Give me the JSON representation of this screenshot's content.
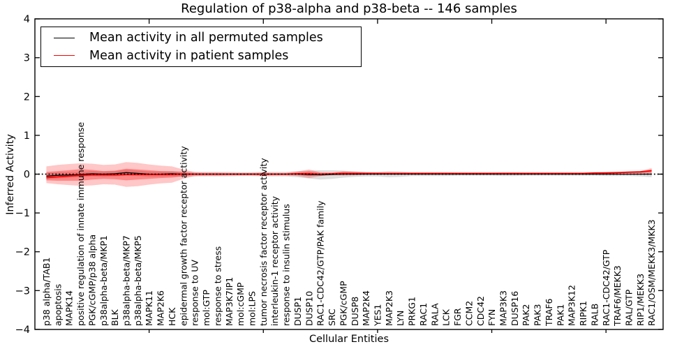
{
  "title": "Regulation of p38-alpha and p38-beta -- 146 samples",
  "axes": {
    "ylabel": "Inferred Activity",
    "xlabel": "Cellular Entities",
    "ytick_values": [
      4,
      3,
      2,
      1,
      0,
      -1,
      -2,
      -3,
      -4
    ],
    "ytick_labels": [
      "4",
      "3",
      "2",
      "1",
      "0",
      "−1",
      "−2",
      "−3",
      "−4"
    ],
    "xtick_major_positions": [
      10,
      20,
      30,
      40,
      50
    ]
  },
  "legend": {
    "entries": [
      {
        "label": "Mean activity in all permuted samples",
        "color": "#000000"
      },
      {
        "label": "Mean activity in patient samples",
        "color": "#ff0000"
      }
    ]
  },
  "chart_data": {
    "type": "line",
    "title": "Regulation of p38-alpha and p38-beta -- 146 samples",
    "xlabel": "Cellular Entities",
    "ylabel": "Inferred Activity",
    "ylim": [
      -4,
      4
    ],
    "zero_line": {
      "y": 0,
      "style": "dotted",
      "color": "#000000"
    },
    "categories": [
      "p38 alpha/TAB1",
      "apoptosis",
      "MAPK14",
      "positive regulation of innate immune response",
      "PGK/cGMP/p38 alpha",
      "p38alpha-beta/MKP1",
      "BLK",
      "p38alpha-beta/MKP7",
      "p38alpha-beta/MKP5",
      "MAPK11",
      "MAP2K6",
      "HCK",
      "epidermal growth factor receptor activity",
      "response to UV",
      "mol:GTP",
      "response to stress",
      "MAP3K7IP1",
      "mol:cGMP",
      "mol:LPS",
      "tumor necrosis factor receptor activity",
      "interleukin-1 receptor activity",
      "response to insulin stimulus",
      "DUSP1",
      "DUSP10",
      "RAC1-CDC42/GTP/PAK family",
      "SRC",
      "PGK/cGMP",
      "DUSP8",
      "MAP2K4",
      "YES1",
      "MAP2K3",
      "LYN",
      "PRKG1",
      "RAC1",
      "RALA",
      "LCK",
      "FGR",
      "CCM2",
      "CDC42",
      "FYN",
      "MAP3K3",
      "DUSP16",
      "PAK2",
      "PAK3",
      "TRAF6",
      "PAK1",
      "MAP3K12",
      "RIPK1",
      "RALB",
      "RAC1-CDC42/GTP",
      "TRAF6/MEKK3",
      "RAL/GTP",
      "RIP1/MEKK3",
      "RAC1/OSM/MEKK3/MKK3"
    ],
    "series": [
      {
        "name": "Mean activity in all permuted samples",
        "color": "#000000",
        "width": 1.3,
        "values": [
          -0.05,
          -0.03,
          -0.02,
          -0.01,
          0.01,
          0,
          0.01,
          0.04,
          0.02,
          0,
          0,
          0.01,
          0,
          0,
          0,
          0,
          0,
          0,
          0,
          0,
          0,
          0,
          0,
          -0.01,
          -0.02,
          -0.01,
          0,
          0,
          0,
          0,
          0,
          0,
          0,
          0,
          0,
          0,
          0,
          0,
          0,
          0,
          0,
          0,
          0,
          0,
          0,
          0,
          0,
          0,
          0,
          0,
          0,
          0,
          0,
          0
        ]
      },
      {
        "name": "Mean activity in patient samples",
        "color": "#ff0000",
        "width": 1.8,
        "values": [
          -0.09,
          -0.07,
          -0.05,
          -0.03,
          -0.02,
          -0.02,
          -0.02,
          -0.01,
          -0.01,
          -0.01,
          -0.01,
          -0.01,
          0,
          0,
          0,
          0,
          0,
          0,
          0,
          0,
          0,
          0,
          0.01,
          0.01,
          0,
          0.01,
          0.02,
          0.02,
          0.02,
          0.02,
          0.02,
          0.02,
          0.02,
          0.02,
          0.02,
          0.02,
          0.02,
          0.02,
          0.02,
          0.02,
          0.02,
          0.02,
          0.02,
          0.02,
          0.02,
          0.02,
          0.02,
          0.02,
          0.03,
          0.03,
          0.04,
          0.05,
          0.06,
          0.09
        ]
      }
    ],
    "bands": [
      {
        "name": "permuted-range",
        "color": "#000000",
        "opacity": 0.13,
        "upper": [
          0.03,
          0.05,
          0.05,
          0.06,
          0.08,
          0.07,
          0.08,
          0.12,
          0.09,
          0.07,
          0.07,
          0.08,
          0.07,
          0.06,
          0.06,
          0.06,
          0.06,
          0.05,
          0.05,
          0.06,
          0.06,
          0.06,
          0.08,
          0.09,
          0.1,
          0.1,
          0.09,
          0.07,
          0.06,
          0.06,
          0.08,
          0.07,
          0.05,
          0.05,
          0.05,
          0.05,
          0.04,
          0.04,
          0.04,
          0.04,
          0.05,
          0.05,
          0.04,
          0.04,
          0.04,
          0.04,
          0.04,
          0.04,
          0.04,
          0.05,
          0.05,
          0.05,
          0.06,
          0.08
        ],
        "lower": [
          -0.13,
          -0.11,
          -0.09,
          -0.08,
          -0.06,
          -0.07,
          -0.06,
          -0.04,
          -0.05,
          -0.07,
          -0.07,
          -0.06,
          -0.07,
          -0.06,
          -0.06,
          -0.06,
          -0.06,
          -0.05,
          -0.05,
          -0.06,
          -0.06,
          -0.06,
          -0.08,
          -0.11,
          -0.14,
          -0.12,
          -0.09,
          -0.07,
          -0.06,
          -0.06,
          -0.08,
          -0.07,
          -0.05,
          -0.05,
          -0.05,
          -0.05,
          -0.04,
          -0.04,
          -0.04,
          -0.04,
          -0.05,
          -0.05,
          -0.04,
          -0.04,
          -0.04,
          -0.04,
          -0.04,
          -0.04,
          -0.04,
          -0.05,
          -0.05,
          -0.05,
          -0.06,
          -0.08
        ]
      },
      {
        "name": "patient-range-outer",
        "color": "#ff0000",
        "opacity": 0.22,
        "upper": [
          0.2,
          0.24,
          0.26,
          0.28,
          0.27,
          0.24,
          0.25,
          0.31,
          0.29,
          0.25,
          0.22,
          0.2,
          0.12,
          0.05,
          0.04,
          0.04,
          0.03,
          0.03,
          0.03,
          0.04,
          0.03,
          0.03,
          0.07,
          0.12,
          0.05,
          0.04,
          0.08,
          0.07,
          0.05,
          0.04,
          0.04,
          0.04,
          0.04,
          0.04,
          0.04,
          0.04,
          0.04,
          0.04,
          0.04,
          0.04,
          0.04,
          0.04,
          0.04,
          0.04,
          0.04,
          0.04,
          0.04,
          0.04,
          0.05,
          0.06,
          0.06,
          0.07,
          0.08,
          0.16
        ],
        "lower": [
          -0.23,
          -0.26,
          -0.28,
          -0.3,
          -0.29,
          -0.26,
          -0.27,
          -0.33,
          -0.31,
          -0.27,
          -0.24,
          -0.22,
          -0.12,
          -0.05,
          -0.04,
          -0.04,
          -0.03,
          -0.03,
          -0.03,
          -0.04,
          -0.03,
          -0.03,
          -0.05,
          -0.1,
          -0.05,
          -0.02,
          -0.04,
          -0.03,
          -0.01,
          0,
          0,
          0,
          0,
          0,
          0,
          0,
          0,
          0,
          0,
          0,
          0,
          0,
          0,
          0,
          0,
          0,
          0,
          0,
          0.01,
          0,
          0.01,
          0.02,
          0.02,
          0.01
        ]
      },
      {
        "name": "patient-range-inner",
        "color": "#ff0000",
        "opacity": 0.32,
        "upper": [
          0.06,
          0.08,
          0.1,
          0.13,
          0.11,
          0.08,
          0.09,
          0.14,
          0.12,
          0.1,
          0.08,
          0.07,
          0.05,
          0.02,
          0.02,
          0.02,
          0.02,
          0.02,
          0.02,
          0.02,
          0.02,
          0.02,
          0.04,
          0.07,
          0.03,
          0.03,
          0.05,
          0.04,
          0.03,
          0.03,
          0.03,
          0.03,
          0.03,
          0.03,
          0.03,
          0.03,
          0.03,
          0.03,
          0.03,
          0.03,
          0.03,
          0.03,
          0.03,
          0.03,
          0.03,
          0.03,
          0.03,
          0.03,
          0.04,
          0.04,
          0.05,
          0.05,
          0.06,
          0.12
        ],
        "lower": [
          -0.16,
          -0.17,
          -0.17,
          -0.17,
          -0.14,
          -0.12,
          -0.13,
          -0.16,
          -0.14,
          -0.12,
          -0.1,
          -0.09,
          -0.05,
          -0.02,
          -0.02,
          -0.02,
          -0.02,
          -0.02,
          -0.02,
          -0.02,
          -0.02,
          -0.02,
          -0.02,
          -0.05,
          -0.02,
          -0.01,
          -0.01,
          0,
          0,
          0.01,
          0.01,
          0.01,
          0.01,
          0.01,
          0.01,
          0.01,
          0.01,
          0.01,
          0.01,
          0.01,
          0.01,
          0.01,
          0.01,
          0.01,
          0.01,
          0.01,
          0.01,
          0.01,
          0.01,
          0.01,
          0.02,
          0.03,
          0.03,
          0.05
        ]
      }
    ],
    "legend_position": "upper left",
    "grid": false
  }
}
